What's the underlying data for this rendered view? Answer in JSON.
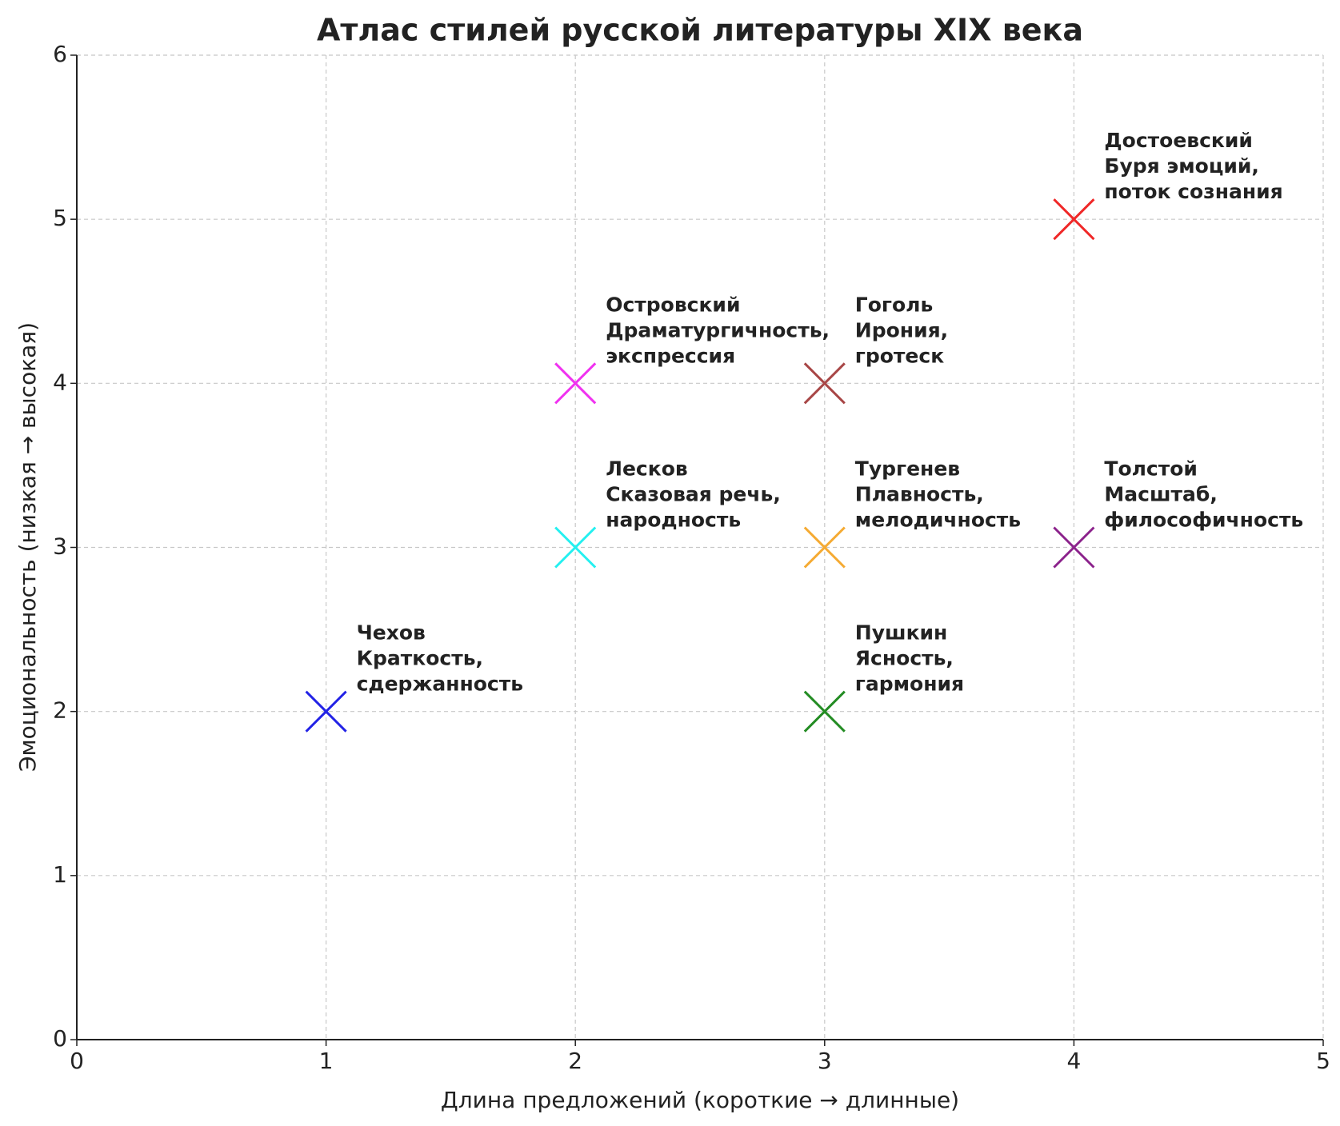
{
  "chart_data": {
    "type": "scatter",
    "title": "Атлас стилей русской литературы XIX века",
    "x_label": "Длина предложений (короткие → длинные)",
    "y_label": "Эмоциональность (низкая → высокая)",
    "xlim": [
      0,
      5
    ],
    "ylim": [
      0,
      6
    ],
    "xticks": [
      0,
      1,
      2,
      3,
      4,
      5
    ],
    "yticks": [
      0,
      1,
      2,
      3,
      4,
      5,
      6
    ],
    "grid": true,
    "marker": "x",
    "series": [
      {
        "name": "Чехов",
        "color": "#2323e6",
        "x": [
          1
        ],
        "values": [
          2
        ],
        "label_lines": [
          "Краткость,",
          "сдержанность"
        ]
      },
      {
        "name": "Островский",
        "color": "#f032f0",
        "x": [
          2
        ],
        "values": [
          4
        ],
        "label_lines": [
          "Драматургичность,",
          "экспрессия"
        ]
      },
      {
        "name": "Лесков",
        "color": "#23f0f0",
        "x": [
          2
        ],
        "values": [
          3
        ],
        "label_lines": [
          "Сказовая речь,",
          "народность"
        ]
      },
      {
        "name": "Гоголь",
        "color": "#a84646",
        "x": [
          3
        ],
        "values": [
          4
        ],
        "label_lines": [
          "Ирония,",
          "гротеск"
        ]
      },
      {
        "name": "Тургенев",
        "color": "#f5aa32",
        "x": [
          3
        ],
        "values": [
          3
        ],
        "label_lines": [
          "Плавность,",
          "мелодичность"
        ]
      },
      {
        "name": "Пушкин",
        "color": "#238c23",
        "x": [
          3
        ],
        "values": [
          2
        ],
        "label_lines": [
          "Ясность,",
          "гармония"
        ]
      },
      {
        "name": "Достоевский",
        "color": "#f02828",
        "x": [
          4
        ],
        "values": [
          5
        ],
        "label_lines": [
          "Буря эмоций,",
          "поток сознания"
        ]
      },
      {
        "name": "Толстой",
        "color": "#8c238c",
        "x": [
          4
        ],
        "values": [
          3
        ],
        "label_lines": [
          "Масштаб,",
          "философичность"
        ]
      }
    ]
  }
}
